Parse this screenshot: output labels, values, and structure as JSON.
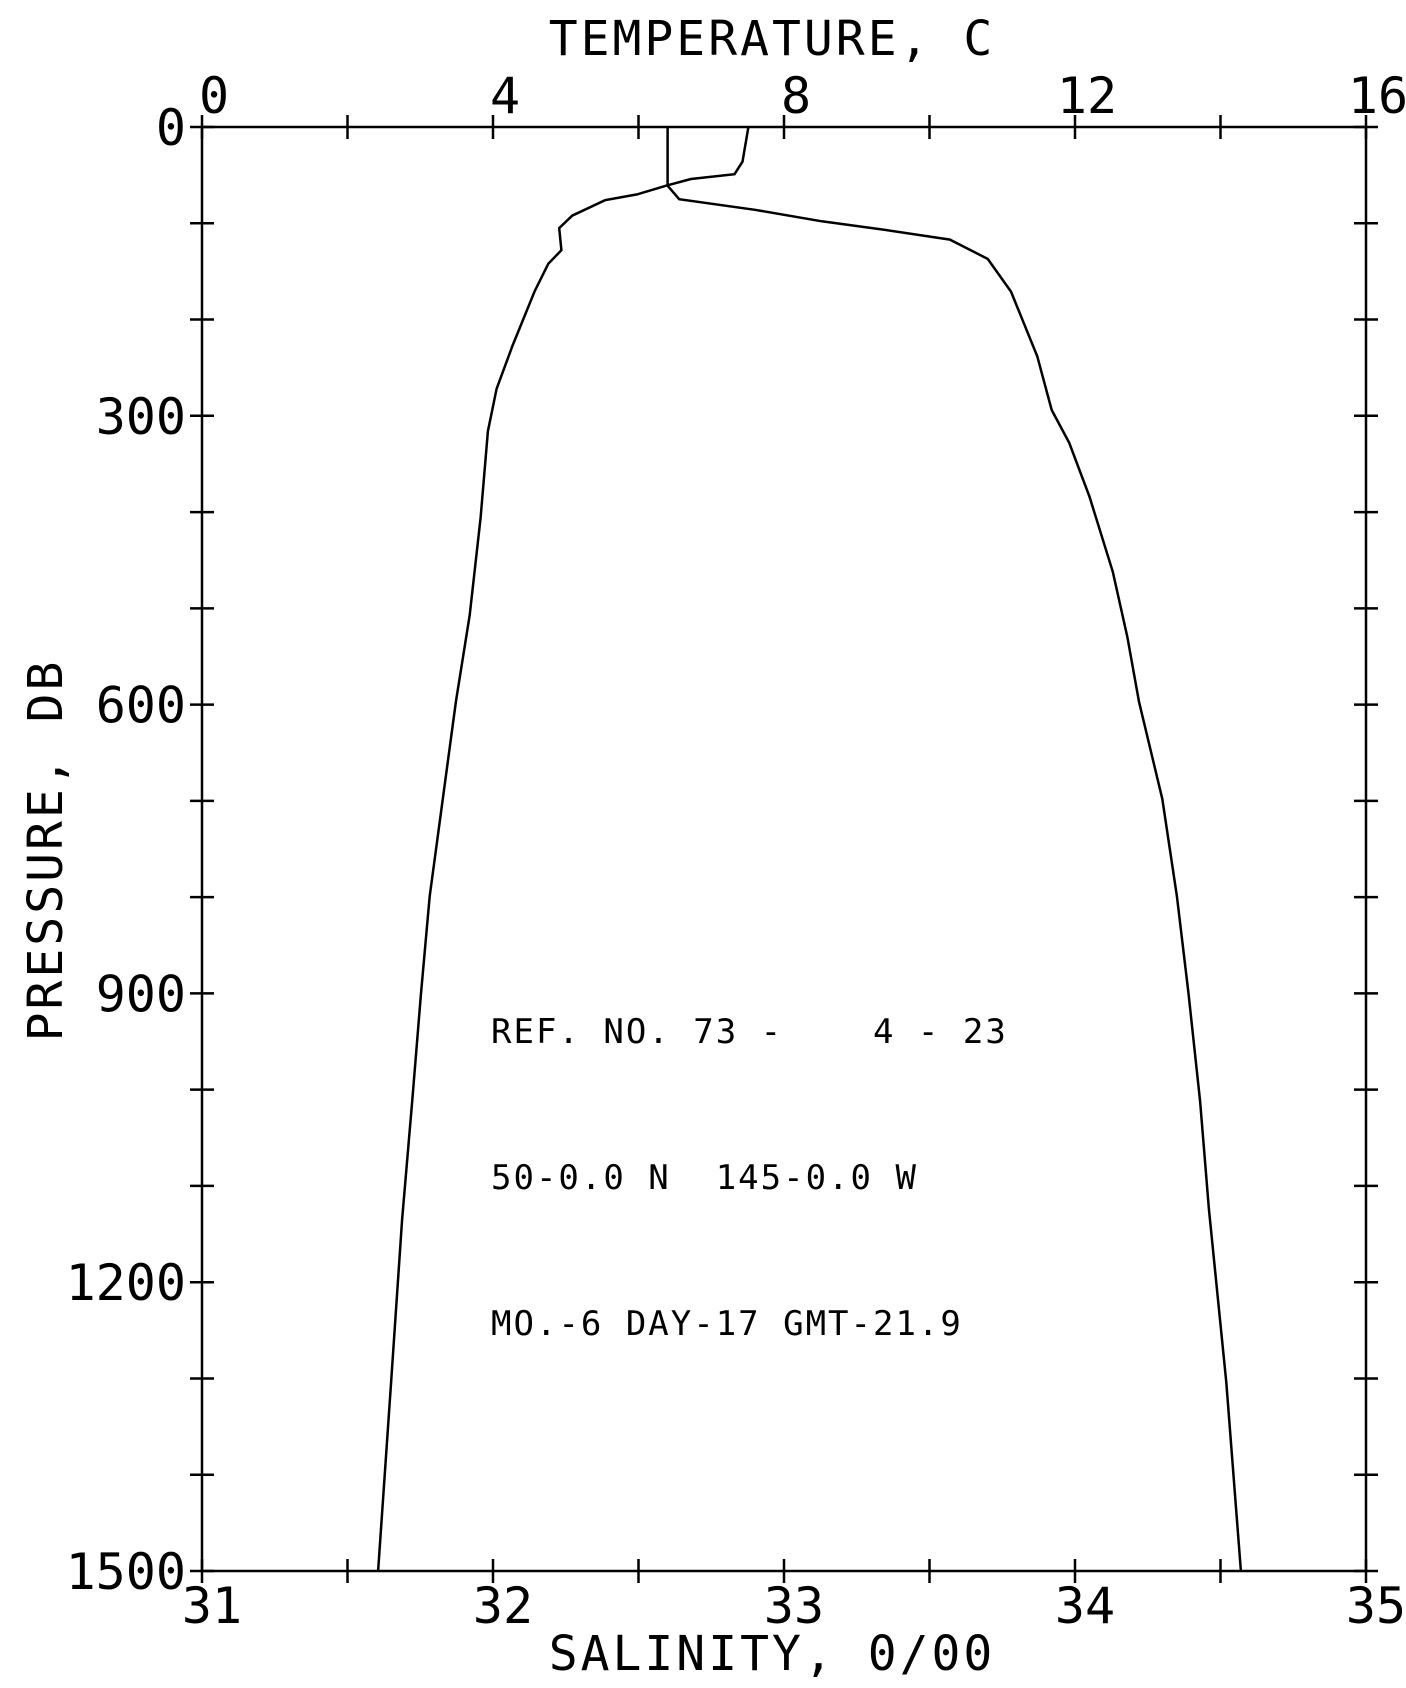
{
  "chart_data": {
    "type": "line",
    "x_label": "TEMPERATURE, C",
    "x2_label": "SALINITY, 0/00",
    "y_label": "PRESSURE, DB",
    "xlim": [
      0,
      16
    ],
    "xticks": [
      0,
      4,
      8,
      12,
      16
    ],
    "xminorticks": [
      2,
      6,
      10,
      14
    ],
    "x2lim": [
      31,
      35
    ],
    "x2ticks": [
      31,
      32,
      33,
      34,
      35
    ],
    "x2minorticks": [
      31.5,
      32.5,
      33.5,
      34.5
    ],
    "ylim": [
      0,
      1500
    ],
    "yticks": [
      0,
      300,
      600,
      900,
      1200,
      1500
    ],
    "yminorticks": [
      100,
      200,
      400,
      500,
      700,
      800,
      1000,
      1100,
      1300,
      1400
    ],
    "y_inverted": true,
    "series": [
      {
        "axis": "x",
        "color": "#000000",
        "x": [
          7.51,
          7.43,
          7.32,
          6.72,
          6.38,
          5.98,
          5.54,
          5.09,
          4.91,
          4.94,
          4.76,
          4.57,
          4.27,
          4.05,
          3.93,
          3.83,
          3.68,
          3.49,
          3.31,
          3.13,
          3.01,
          2.89,
          2.75,
          2.6,
          2.42
        ],
        "y": [
          0,
          36,
          49,
          54,
          61,
          70,
          76,
          92,
          105,
          128,
          142,
          171,
          227,
          272,
          316,
          406,
          507,
          597,
          698,
          799,
          900,
          1012,
          1135,
          1304,
          1500
        ]
      },
      {
        "axis": "x2",
        "color": "#000000",
        "x": [
          32.6,
          32.6,
          32.64,
          32.9,
          33.13,
          33.35,
          33.57,
          33.7,
          33.78,
          33.87,
          33.92,
          33.98,
          34.05,
          34.13,
          34.18,
          34.22,
          34.3,
          34.35,
          34.39,
          34.43,
          34.46,
          34.52,
          34.57
        ],
        "y": [
          0,
          61,
          75,
          86,
          98,
          107,
          117,
          137,
          171,
          238,
          294,
          328,
          384,
          462,
          530,
          597,
          698,
          799,
          900,
          1012,
          1124,
          1304,
          1500
        ]
      }
    ],
    "annotations": [
      "REF. NO. 73 -    4 - 23",
      "50-0.0 N  145-0.0 W",
      "MO.-6 DAY-17 GMT-21.9"
    ]
  }
}
